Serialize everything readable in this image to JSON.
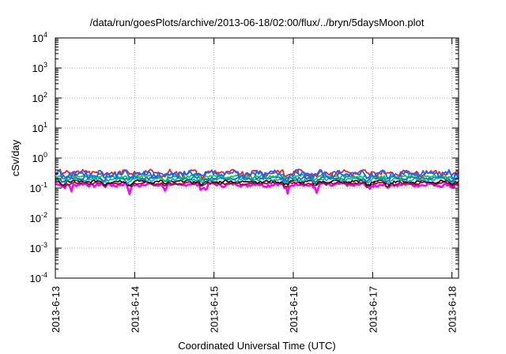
{
  "chart_data": {
    "type": "line",
    "title": "/data/run/goesPlots/archive/2013-06-18/02:00/flux/../bryn/5daysMoon.plot",
    "xlabel": "Coordinated Universal Time (UTC)",
    "ylabel": "cSv/day",
    "yscale": "log",
    "ylim": [
      0.0001,
      10000
    ],
    "y_ticks": [
      {
        "base": "10",
        "exp": "-4"
      },
      {
        "base": "10",
        "exp": "-3"
      },
      {
        "base": "10",
        "exp": "-2"
      },
      {
        "base": "10",
        "exp": "-1"
      },
      {
        "base": "10",
        "exp": "0"
      },
      {
        "base": "10",
        "exp": "1"
      },
      {
        "base": "10",
        "exp": "2"
      },
      {
        "base": "10",
        "exp": "3"
      },
      {
        "base": "10",
        "exp": "4"
      }
    ],
    "xlim": [
      "2013-06-13",
      "2013-06-18 02:00"
    ],
    "x_ticks": [
      "2013-6-13",
      "2013-6-14",
      "2013-6-15",
      "2013-6-16",
      "2013-6-17",
      "2013-6-18"
    ],
    "grid": true,
    "legend": "none",
    "series": [
      {
        "color": "#ff00ff",
        "base": 0.13,
        "amp": 0.015,
        "dips": [
          [
            0.2,
            0.07
          ],
          [
            0.93,
            0.045
          ],
          [
            1.38,
            0.075
          ],
          [
            1.9,
            0.065
          ],
          [
            2.93,
            0.06
          ],
          [
            3.3,
            0.05
          ],
          [
            3.97,
            0.085
          ],
          [
            5.0,
            0.1
          ]
        ]
      },
      {
        "color": "#8b1a1a",
        "base": 0.145,
        "amp": 0.012,
        "dips": []
      },
      {
        "color": "#1a1a1a",
        "base": 0.165,
        "amp": 0.015,
        "dips": []
      },
      {
        "color": "#00b8b8",
        "base": 0.195,
        "amp": 0.02,
        "dips": []
      },
      {
        "color": "#2a6e9e",
        "base": 0.22,
        "amp": 0.025,
        "dips": []
      },
      {
        "color": "#00cc66",
        "base": 0.25,
        "amp": 0.03,
        "dips": []
      },
      {
        "color": "#ee2222",
        "base": 0.33,
        "amp": 0.06,
        "dips": []
      },
      {
        "color": "#1e64ff",
        "base": 0.3,
        "amp": 0.07,
        "dips": []
      }
    ],
    "n_points": 250,
    "spike_days": [
      0.1,
      0.62,
      0.93,
      1.38,
      1.85,
      2.9,
      3.28,
      3.95,
      4.18,
      5.0
    ]
  }
}
